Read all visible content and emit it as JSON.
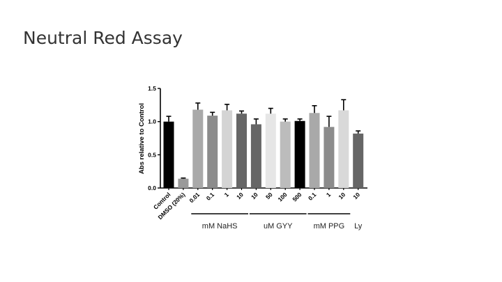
{
  "slide": {
    "title": "Neutral Red Assay"
  },
  "chart_data": {
    "type": "bar",
    "title": "",
    "xlabel": "",
    "ylabel": "Abs relative to  Control",
    "ylim": [
      0,
      1.5
    ],
    "yticks": [
      "0.0",
      "0.5",
      "1.0",
      "1.5"
    ],
    "grid": false,
    "categories": [
      "Control",
      "DMSO (20%)",
      "0.01",
      "0.1",
      "1",
      "10",
      "10",
      "50",
      "100",
      "500",
      "0.1",
      "1",
      "10",
      "10"
    ],
    "values": [
      1.0,
      0.14,
      1.18,
      1.09,
      1.17,
      1.12,
      0.96,
      1.12,
      1.0,
      1.01,
      1.13,
      0.92,
      1.17,
      0.82
    ],
    "errors": [
      0.08,
      0.01,
      0.1,
      0.05,
      0.09,
      0.04,
      0.08,
      0.08,
      0.04,
      0.03,
      0.11,
      0.16,
      0.16,
      0.04
    ],
    "colors": [
      "#000000",
      "#9a9a9a",
      "#a9a9a9",
      "#8c8c8c",
      "#d4d4d4",
      "#666666",
      "#666666",
      "#e6e6e6",
      "#bcbcbc",
      "#000000",
      "#a9a9a9",
      "#8c8c8c",
      "#d9d9d9",
      "#666666"
    ],
    "groups": [
      {
        "label": "mM NaHS",
        "from": 2,
        "to": 5,
        "line": true
      },
      {
        "label": "uM GYY",
        "from": 6,
        "to": 9,
        "line": true
      },
      {
        "label": "mM PPG",
        "from": 10,
        "to": 12,
        "line": true
      },
      {
        "label": "Ly",
        "from": 13,
        "to": 13,
        "line": false
      }
    ]
  }
}
